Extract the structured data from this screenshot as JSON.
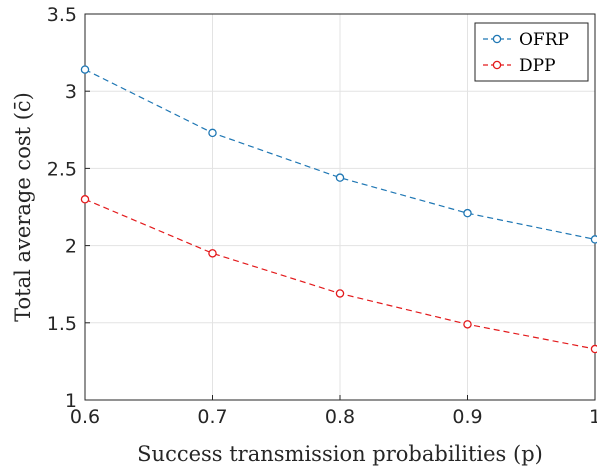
{
  "chart_data": {
    "type": "line",
    "xlabel": "Success transmission probabilities (p)",
    "ylabel": "Total average cost (c̄)",
    "x": [
      0.6,
      0.7,
      0.8,
      0.9,
      1.0
    ],
    "xlim": [
      0.6,
      1.0
    ],
    "ylim": [
      1,
      3.5
    ],
    "xticks": [
      "0.6",
      "0.7",
      "0.8",
      "0.9",
      "1"
    ],
    "yticks": [
      "1",
      "1.5",
      "2",
      "2.5",
      "3",
      "3.5"
    ],
    "grid": true,
    "legend_position": "top-right",
    "series": [
      {
        "name": "OFRP",
        "color": "#1f77b4",
        "values": [
          3.14,
          2.73,
          2.44,
          2.21,
          2.04
        ]
      },
      {
        "name": "DPP",
        "color": "#e31a1c",
        "values": [
          2.3,
          1.95,
          1.69,
          1.49,
          1.33
        ]
      }
    ]
  }
}
